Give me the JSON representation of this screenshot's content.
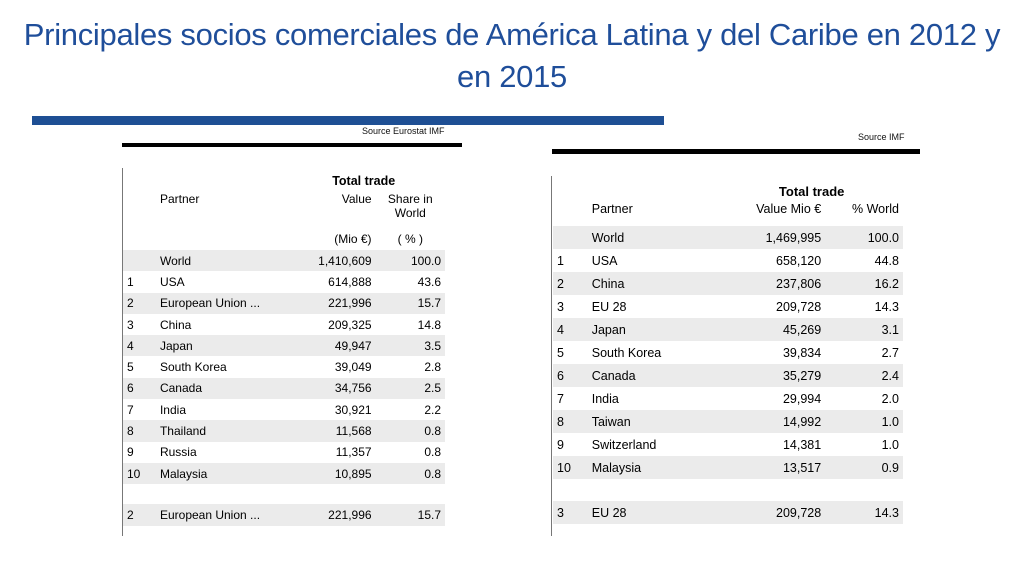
{
  "title": "Principales socios comerciales de América Latina y del Caribe en 2012 y en 2015",
  "left": {
    "source": "Source Eurostat IMF",
    "header": "Total trade",
    "col_partner": "Partner",
    "col_value": "Value",
    "col_share": "Share in World",
    "unit_value": "(Mio €)",
    "unit_share": "( % )",
    "rows": [
      {
        "rank": "",
        "partner": "World",
        "value": "1,410,609",
        "share": "100.0"
      },
      {
        "rank": "1",
        "partner": "USA",
        "value": "614,888",
        "share": "43.6"
      },
      {
        "rank": "2",
        "partner": "European Union ...",
        "value": "221,996",
        "share": "15.7"
      },
      {
        "rank": "3",
        "partner": "China",
        "value": "209,325",
        "share": "14.8"
      },
      {
        "rank": "4",
        "partner": "Japan",
        "value": "49,947",
        "share": "3.5"
      },
      {
        "rank": "5",
        "partner": "South Korea",
        "value": "39,049",
        "share": "2.8"
      },
      {
        "rank": "6",
        "partner": "Canada",
        "value": "34,756",
        "share": "2.5"
      },
      {
        "rank": "7",
        "partner": "India",
        "value": "30,921",
        "share": "2.2"
      },
      {
        "rank": "8",
        "partner": "Thailand",
        "value": "11,568",
        "share": "0.8"
      },
      {
        "rank": "9",
        "partner": "Russia",
        "value": "11,357",
        "share": "0.8"
      },
      {
        "rank": "10",
        "partner": "Malaysia",
        "value": "10,895",
        "share": "0.8"
      }
    ],
    "footer": {
      "rank": "2",
      "partner": "European Union ...",
      "value": "221,996",
      "share": "15.7"
    }
  },
  "right": {
    "source": "Source IMF",
    "header": "Total trade",
    "col_partner": "Partner",
    "col_value": "Value Mio €",
    "col_share": "% World",
    "rows": [
      {
        "rank": "",
        "partner": "World",
        "value": "1,469,995",
        "share": "100.0"
      },
      {
        "rank": "1",
        "partner": "USA",
        "value": "658,120",
        "share": "44.8"
      },
      {
        "rank": "2",
        "partner": "China",
        "value": "237,806",
        "share": "16.2"
      },
      {
        "rank": "3",
        "partner": "EU 28",
        "value": "209,728",
        "share": "14.3"
      },
      {
        "rank": "4",
        "partner": "Japan",
        "value": "45,269",
        "share": "3.1"
      },
      {
        "rank": "5",
        "partner": "South Korea",
        "value": "39,834",
        "share": "2.7"
      },
      {
        "rank": "6",
        "partner": "Canada",
        "value": "35,279",
        "share": "2.4"
      },
      {
        "rank": "7",
        "partner": "India",
        "value": "29,994",
        "share": "2.0"
      },
      {
        "rank": "8",
        "partner": "Taiwan",
        "value": "14,992",
        "share": "1.0"
      },
      {
        "rank": "9",
        "partner": "Switzerland",
        "value": "14,381",
        "share": "1.0"
      },
      {
        "rank": "10",
        "partner": "Malaysia",
        "value": "13,517",
        "share": "0.9"
      }
    ],
    "footer": {
      "rank": "3",
      "partner": "EU 28",
      "value": "209,728",
      "share": "14.3"
    }
  },
  "colors": {
    "title": "#1f4e9a",
    "rule": "#1e4f94",
    "shade": "#ebebeb"
  }
}
